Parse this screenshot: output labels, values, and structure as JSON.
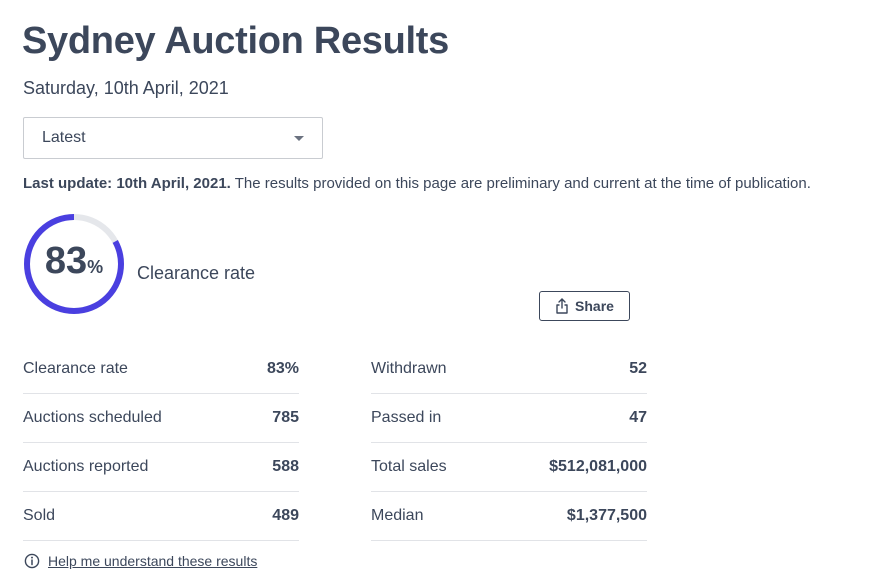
{
  "page": {
    "title": "Sydney Auction Results",
    "date": "Saturday, 10th April, 2021"
  },
  "period_select": {
    "selected": "Latest"
  },
  "notice": {
    "bold": "Last update: 10th April, 2021.",
    "text": " The results provided on this page are preliminary and current at the time of publication."
  },
  "gauge": {
    "value": "83",
    "symbol": "%",
    "fraction": 0.83,
    "label": "Clearance rate",
    "track_color": "#e5e7eb",
    "fill_color": "#4a3fe0"
  },
  "share": {
    "label": "Share",
    "icon": "share-icon"
  },
  "stats_left": [
    {
      "label": "Clearance rate",
      "value": "83%"
    },
    {
      "label": "Auctions scheduled",
      "value": "785"
    },
    {
      "label": "Auctions reported",
      "value": "588"
    },
    {
      "label": "Sold",
      "value": "489"
    }
  ],
  "stats_right": [
    {
      "label": "Withdrawn",
      "value": "52"
    },
    {
      "label": "Passed in",
      "value": "47"
    },
    {
      "label": "Total sales",
      "value": "$512,081,000"
    },
    {
      "label": "Median",
      "value": "$1,377,500"
    }
  ],
  "help": {
    "label": "Help me understand these results",
    "icon": "info-icon"
  }
}
